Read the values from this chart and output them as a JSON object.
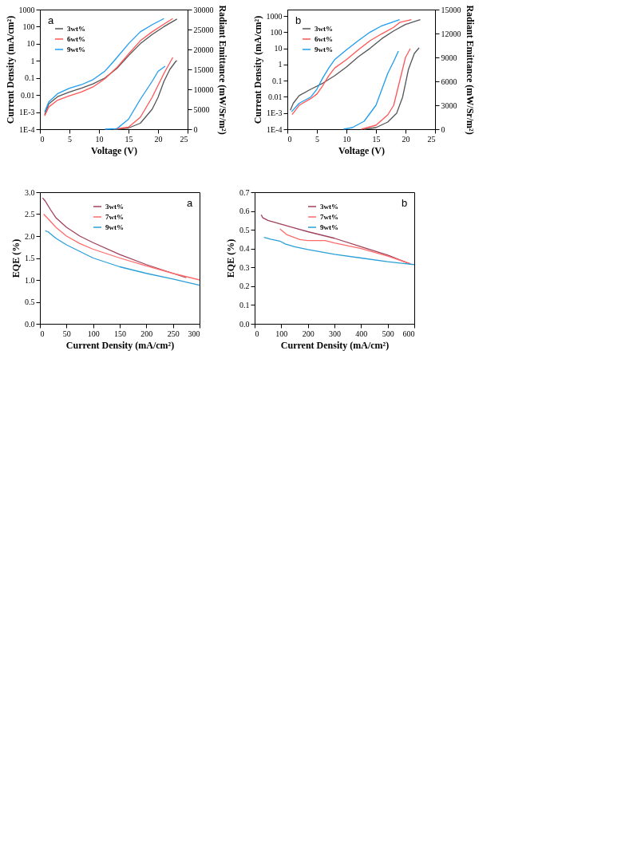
{
  "chart_data": [
    {
      "type": "line",
      "annotations": [
        "a"
      ],
      "xlabel": "Voltage (V)",
      "ylabel": "Current Density (mA/cm²)",
      "y2label": "Radiant Emittance (mW/Sr/m²)",
      "log": "y",
      "legend": "top left",
      "xlim": [
        0,
        25
      ],
      "xticks": [
        0,
        5,
        10,
        15,
        20,
        25
      ],
      "ylim": [
        0.0001,
        1000
      ],
      "yticks": [
        {
          "value": 0.0001,
          "label": "1E-4"
        },
        {
          "value": 0.001,
          "label": "1E-3"
        },
        0.01,
        0.1,
        1,
        10,
        100,
        1000
      ],
      "y2lim": [
        0,
        30000
      ],
      "y2ticks": [
        0,
        5000,
        10000,
        15000,
        20000,
        25000,
        30000
      ],
      "series": [
        {
          "name": "3wt%",
          "color": "#555555",
          "x": [
            0.8,
            1.5,
            3,
            5,
            7,
            9,
            11,
            13,
            15,
            17,
            19,
            21,
            23.2
          ],
          "values": [
            0.0007,
            0.003,
            0.008,
            0.015,
            0.025,
            0.045,
            0.1,
            0.35,
            2,
            10,
            35,
            100,
            280
          ]
        },
        {
          "name": "6wt%",
          "color": "#ff5555",
          "x": [
            0.8,
            1.5,
            3,
            5,
            7,
            9,
            11,
            13,
            15,
            17,
            19,
            21,
            22.5
          ],
          "values": [
            0.0006,
            0.002,
            0.005,
            0.009,
            0.015,
            0.03,
            0.09,
            0.4,
            2.5,
            15,
            50,
            140,
            300
          ]
        },
        {
          "name": "9wt%",
          "color": "#1e9cf0",
          "x": [
            0.8,
            1.5,
            3,
            5,
            7,
            9,
            11,
            12,
            13,
            15,
            17,
            19,
            21
          ],
          "values": [
            0.001,
            0.004,
            0.012,
            0.025,
            0.04,
            0.08,
            0.25,
            0.6,
            1.5,
            10,
            50,
            130,
            300
          ]
        },
        {
          "axis": "y2",
          "color": "#555555",
          "x": [
            13,
            15,
            17,
            19,
            20,
            21,
            22,
            23,
            23.2
          ],
          "values": [
            0,
            300,
            1500,
            5000,
            8000,
            12000,
            15000,
            17000,
            17200
          ]
        },
        {
          "axis": "y2",
          "color": "#ff5555",
          "x": [
            12.5,
            15,
            17,
            19,
            21,
            22.5
          ],
          "values": [
            0,
            500,
            3000,
            8000,
            14000,
            18000
          ]
        },
        {
          "axis": "y2",
          "color": "#1e9cf0",
          "x": [
            11,
            13,
            15,
            17,
            19,
            20,
            21.2
          ],
          "values": [
            0,
            100,
            2500,
            7500,
            12000,
            14500,
            15800
          ]
        }
      ]
    },
    {
      "type": "line",
      "annotations": [
        "b"
      ],
      "xlabel": "Voltage (V)",
      "ylabel": "Current Density (mA/cm²)",
      "y2label": "Radiant Emittance (mW/Sr/m²)",
      "log": "y",
      "legend": "top left",
      "xlim": [
        0,
        25
      ],
      "xticks": [
        0,
        5,
        10,
        15,
        20,
        25
      ],
      "ylim": [
        0.0001,
        2500
      ],
      "yticks": [
        {
          "value": 0.0001,
          "label": "1E-4"
        },
        {
          "value": 0.001,
          "label": "1E-3"
        },
        0.01,
        0.1,
        1,
        10,
        100,
        1000
      ],
      "y2lim": [
        0,
        15000
      ],
      "y2ticks": [
        0,
        3000,
        6000,
        9000,
        12000,
        15000
      ],
      "series": [
        {
          "name": "3wt%",
          "color": "#555555",
          "x": [
            0.5,
            1,
            2,
            4,
            6,
            8,
            10,
            12,
            14,
            16,
            18,
            20,
            22.5
          ],
          "values": [
            0.0015,
            0.004,
            0.012,
            0.03,
            0.07,
            0.2,
            0.7,
            3,
            10,
            40,
            120,
            300,
            600
          ]
        },
        {
          "name": "6wt%",
          "color": "#ff5555",
          "x": [
            0.8,
            2,
            4,
            5,
            6,
            7,
            8,
            10,
            12,
            14,
            16,
            18,
            19,
            21
          ],
          "values": [
            0.0008,
            0.003,
            0.008,
            0.015,
            0.05,
            0.2,
            0.6,
            2,
            8,
            30,
            80,
            200,
            400,
            600
          ]
        },
        {
          "name": "9wt%",
          "color": "#1e9cf0",
          "x": [
            0.7,
            2,
            4,
            5,
            6,
            7,
            8,
            10,
            12,
            14,
            16,
            19
          ],
          "values": [
            0.0012,
            0.004,
            0.01,
            0.03,
            0.15,
            0.6,
            2,
            8,
            30,
            100,
            250,
            600
          ]
        },
        {
          "axis": "y2",
          "color": "#555555",
          "x": [
            13,
            15,
            17,
            18.5,
            19.5,
            20.5,
            21.5,
            22.3
          ],
          "values": [
            0,
            200,
            900,
            2000,
            4000,
            7500,
            9500,
            10200
          ]
        },
        {
          "axis": "y2",
          "color": "#ff5555",
          "x": [
            12.5,
            15,
            17,
            18,
            19,
            20,
            20.8
          ],
          "values": [
            0,
            500,
            1800,
            3000,
            6000,
            9000,
            10100
          ]
        },
        {
          "axis": "y2",
          "color": "#1e9cf0",
          "x": [
            9.5,
            11,
            13,
            15,
            16,
            17,
            18,
            18.8
          ],
          "values": [
            0,
            200,
            1000,
            3000,
            5000,
            7000,
            8500,
            9800
          ]
        }
      ]
    },
    {
      "type": "line",
      "annotations": [
        "a"
      ],
      "xlabel": "Current Density (mA/cm²)",
      "ylabel": "EQE (%)",
      "legend": "top",
      "xlim": [
        0,
        300
      ],
      "xticks": [
        0,
        50,
        100,
        150,
        200,
        250,
        300
      ],
      "ylim": [
        0,
        3
      ],
      "yticks": [
        {
          "value": 0,
          "label": "0.0"
        },
        0.5,
        {
          "value": 1,
          "label": "1.0"
        },
        1.5,
        {
          "value": 2,
          "label": "2.0"
        },
        2.5,
        {
          "value": 3,
          "label": "3.0"
        }
      ],
      "series": [
        {
          "name": "3wt%",
          "color": "#a0405a",
          "x": [
            5,
            10,
            20,
            30,
            50,
            75,
            100,
            150,
            200,
            250,
            275
          ],
          "values": [
            2.87,
            2.8,
            2.6,
            2.42,
            2.2,
            2.0,
            1.85,
            1.58,
            1.35,
            1.15,
            1.05
          ]
        },
        {
          "name": "7wt%",
          "color": "#ff6a6a",
          "x": [
            7,
            15,
            30,
            50,
            75,
            100,
            150,
            200,
            250,
            300
          ],
          "values": [
            2.5,
            2.4,
            2.2,
            2.0,
            1.83,
            1.7,
            1.5,
            1.32,
            1.15,
            1.0
          ]
        },
        {
          "name": "9wt%",
          "color": "#2a9fd6",
          "x": [
            10,
            15,
            30,
            50,
            75,
            100,
            150,
            200,
            250,
            300
          ],
          "values": [
            2.12,
            2.1,
            1.95,
            1.8,
            1.65,
            1.5,
            1.3,
            1.15,
            1.02,
            0.88
          ]
        }
      ]
    },
    {
      "type": "line",
      "annotations": [
        "b"
      ],
      "xlabel": "Current Density (mA/cm²)",
      "ylabel": "EQE (%)",
      "legend": "top",
      "xlim": [
        0,
        600
      ],
      "xticks": [
        0,
        100,
        200,
        300,
        400,
        500,
        600
      ],
      "ylim": [
        0,
        0.7
      ],
      "yticks": [
        {
          "value": 0,
          "label": "0.0"
        },
        0.1,
        0.2,
        0.3,
        0.4,
        0.5,
        0.6,
        0.7
      ],
      "series": [
        {
          "name": "3wt%",
          "color": "#a0405a",
          "x": [
            25,
            30,
            50,
            100,
            150,
            200,
            300,
            400,
            500,
            590
          ],
          "values": [
            0.58,
            0.565,
            0.55,
            0.53,
            0.51,
            0.49,
            0.455,
            0.41,
            0.365,
            0.315
          ]
        },
        {
          "name": "7wt%",
          "color": "#ff6a6a",
          "x": [
            95,
            120,
            170,
            200,
            265,
            300,
            400,
            500,
            585
          ],
          "values": [
            0.505,
            0.475,
            0.448,
            0.443,
            0.443,
            0.43,
            0.4,
            0.36,
            0.32
          ]
        },
        {
          "name": "9wt%",
          "color": "#2a9fd6",
          "x": [
            35,
            60,
            95,
            115,
            150,
            200,
            300,
            400,
            500,
            600
          ],
          "values": [
            0.46,
            0.45,
            0.44,
            0.425,
            0.41,
            0.395,
            0.37,
            0.35,
            0.33,
            0.315
          ]
        }
      ]
    }
  ]
}
